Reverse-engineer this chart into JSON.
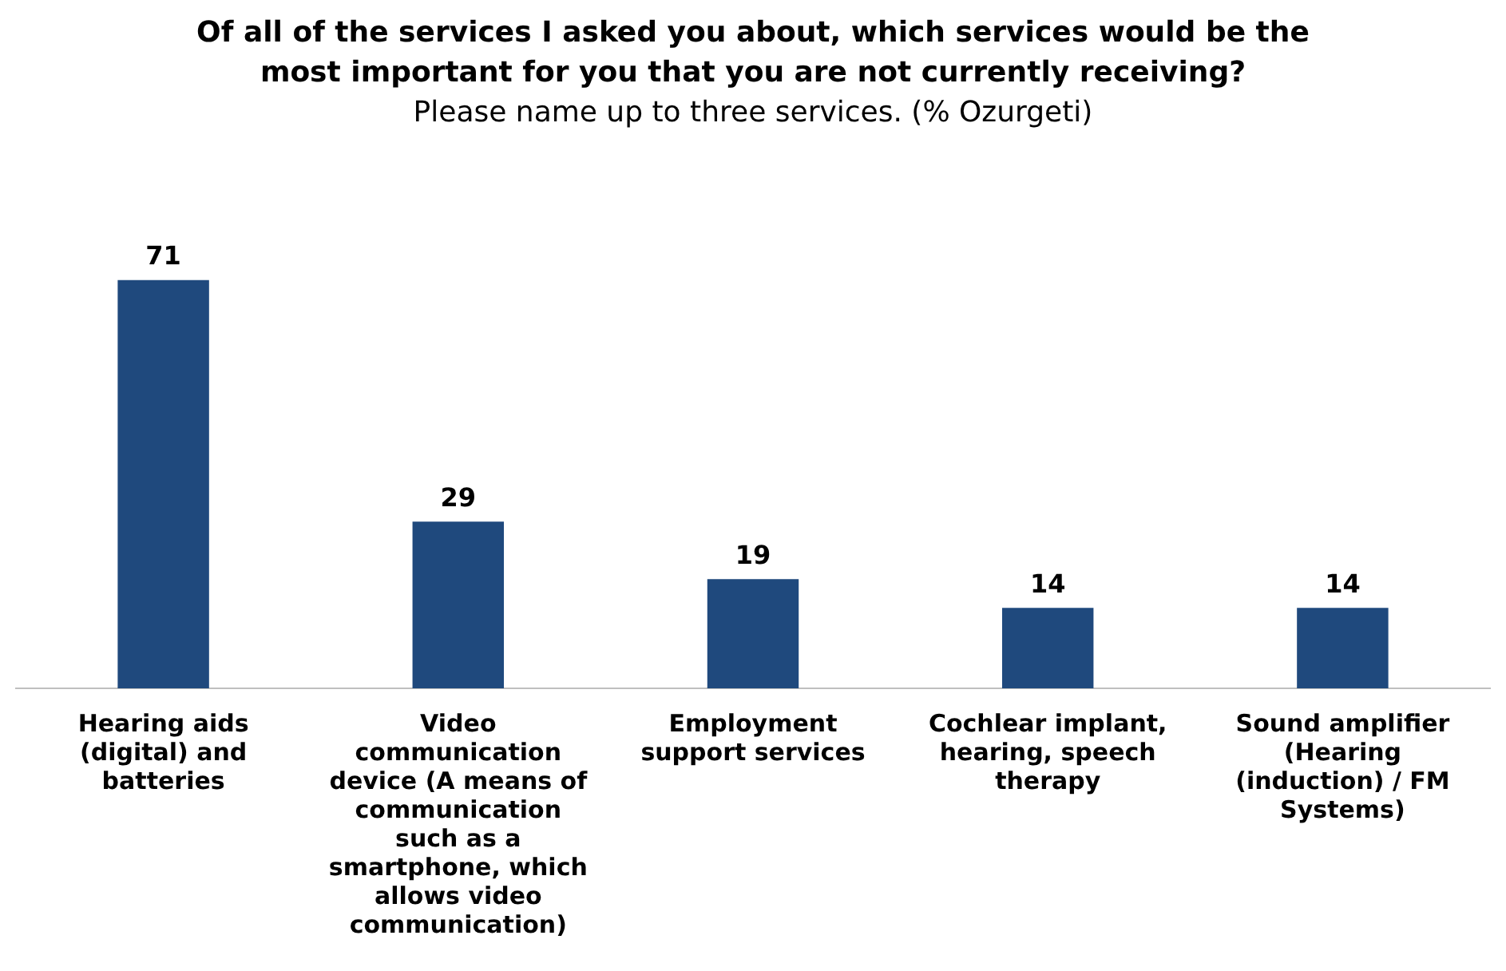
{
  "chart_data": {
    "type": "bar",
    "title": "Of all of the services I asked you about, which services would be the most important for you that you are not currently receiving?",
    "subtitle": "Please name up to three services. (% Ozurgeti)",
    "categories": [
      "Hearing aids (digital) and batteries",
      "Video communication device (A means of communication such as a smartphone, which allows video communication)",
      "Employment support services",
      "Cochlear implant, hearing, speech therapy",
      "Sound amplifier (Hearing (induction) / FM Systems)"
    ],
    "values": [
      71,
      29,
      19,
      14,
      14
    ],
    "color": "#1f497d",
    "data_labels": true,
    "grid": false,
    "legend": false
  }
}
